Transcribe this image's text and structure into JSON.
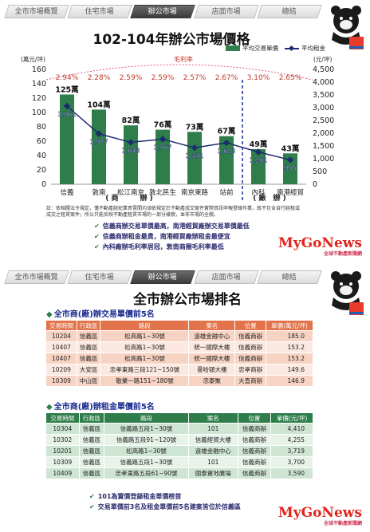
{
  "nav": [
    "全市市場概覽",
    "住宅市場",
    "辦公市場",
    "店面市場",
    "總結"
  ],
  "nav2": [
    "全市市場概覽",
    "住宅市場",
    "辦公市場",
    "店面市場",
    "總結"
  ],
  "panel1": {
    "title": "102-104年辦公市場價格",
    "legend_bar": "平均交易單價",
    "legend_line": "平均租金",
    "left_unit": "(萬元/坪)",
    "right_unit": "(元/坪)",
    "margin_label": "毛利率",
    "group_label_1": "( 商　　　辦 )",
    "group_label_2": "( 廠　辦 )",
    "note": "註：依相關法令規定，僅不動產經紀業買賣間均須依規定於不動產成交案件實際資訊申報登錄作業，故不包含自行經租或成交之租賃案件；所以只能反映不動產租賃市場的一部分樣貌，並非市場的全貌。",
    "bullets": [
      "信義商辦交易單價最高，南港經貿廠辦交易單價最低",
      "信義商辦租金最貴，南港經貿廠辦租金最便宜",
      "內科廠辦毛利率居冠，敦南商圈毛利率最低"
    ],
    "brand": "MyGoNews",
    "brand_sub": "全球不動產新聞網"
  },
  "chart_data": {
    "type": "bar",
    "title": "102-104年辦公市場價格",
    "categories": [
      "信義",
      "敦南",
      "松江南京",
      "敦北民生",
      "南京東路",
      "站前",
      "內科",
      "南港經貿"
    ],
    "series": [
      {
        "name": "平均交易單價",
        "type": "bar",
        "axis": "left",
        "values": [
          125,
          104,
          82,
          76,
          73,
          67,
          49,
          43
        ],
        "labels": [
          "125萬",
          "104萬",
          "82萬",
          "76萬",
          "73萬",
          "67萬",
          "49萬",
          "43萬"
        ],
        "color": "#2e7d4a"
      },
      {
        "name": "平均租金",
        "type": "line",
        "axis": "right",
        "values": [
          3061,
          1977,
          1643,
          1767,
          1431,
          1623,
          1261,
          955
        ],
        "color": "#1c2c6e"
      }
    ],
    "margin_rates": [
      "2.94%",
      "2.28%",
      "2.59%",
      "2.59%",
      "2.57%",
      "2.67%",
      "3.10%",
      "2.65%"
    ],
    "ylabel_left": "(萬元/坪)",
    "ylabel_right": "(元/坪)",
    "ylim_left": [
      0,
      160
    ],
    "yticks_left": [
      0,
      20,
      40,
      60,
      80,
      100,
      120,
      140,
      160
    ],
    "ylim_right": [
      0,
      4500
    ],
    "yticks_right": [
      "0",
      "500",
      "1,000",
      "1,500",
      "2,000",
      "2,500",
      "3,000",
      "3,500",
      "4,000",
      "4,500"
    ],
    "grid": false,
    "legend": "top-right"
  },
  "panel2": {
    "title": "全市辦公市場排名",
    "section1": "全市商(廠)辦交易單價前5名",
    "section2": "全市商(廠)辦租金單價前5名",
    "table1": {
      "headers": [
        "交易時間",
        "行政區",
        "路段",
        "案名",
        "位置",
        "單價(萬元/坪)"
      ],
      "rows": [
        [
          "10204",
          "信義區",
          "松高路1~30號",
          "遠雄金融中心",
          "信義商辦",
          "185.0"
        ],
        [
          "10407",
          "信義區",
          "松高路1~30號",
          "統一國際大樓",
          "信義商辦",
          "153.2"
        ],
        [
          "10407",
          "信義區",
          "松高路1~30號",
          "統一國際大樓",
          "信義商辦",
          "153.2"
        ],
        [
          "10209",
          "大安區",
          "忠孝東路三段121~150號",
          "曼哈頓大樓",
          "忠孝商辦",
          "149.6"
        ],
        [
          "10309",
          "中山區",
          "敬業一路151~180號",
          "忠泰聚",
          "大直商辦",
          "146.9"
        ]
      ]
    },
    "table2": {
      "headers": [
        "交易時間",
        "行政區",
        "路段",
        "案名",
        "位置",
        "單價(元/坪)"
      ],
      "rows": [
        [
          "10304",
          "信義區",
          "信義路五段1~30號",
          "101",
          "信義商辦",
          "4,410"
        ],
        [
          "10302",
          "信義區",
          "信義路五段91~120號",
          "信義經貿大樓",
          "信義商辦",
          "4,255"
        ],
        [
          "10201",
          "信義區",
          "松高路1~30號",
          "遠雄金融中心",
          "信義商辦",
          "3,719"
        ],
        [
          "10309",
          "信義區",
          "信義路五段1~30號",
          "101",
          "信義商辦",
          "3,700"
        ],
        [
          "10409",
          "信義區",
          "忠孝東路五段61~90號",
          "國泰置地廣場",
          "信義商辦",
          "3,590"
        ]
      ]
    },
    "bullets": [
      "101為實價登錄租金單價榜首",
      "交易單價前3名及租金單價前5名建案皆位於信義區"
    ],
    "brand": "MyGoNews",
    "brand_sub": "全球不動產新聞網"
  }
}
